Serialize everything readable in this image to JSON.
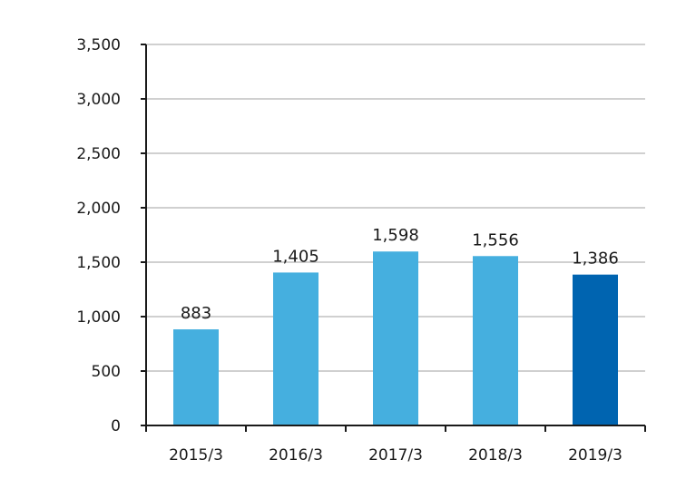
{
  "chart_data": {
    "type": "bar",
    "title": "",
    "xlabel": "",
    "ylabel": "",
    "categories": [
      "2015/3",
      "2016/3",
      "2017/3",
      "2018/3",
      "2019/3"
    ],
    "values": [
      883,
      1405,
      1598,
      1556,
      1386
    ],
    "value_labels": [
      "883",
      "1,405",
      "1,598",
      "1,556",
      "1,386"
    ],
    "ylim": [
      0,
      3500
    ],
    "yticks": [
      0,
      500,
      1000,
      1500,
      2000,
      2500,
      3000,
      3500
    ],
    "ytick_labels": [
      "0",
      "500",
      "1,000",
      "1,500",
      "2,000",
      "2,500",
      "3,000",
      "3,500"
    ],
    "grid": true,
    "legend": "none",
    "colors": {
      "bar": "#45afdf",
      "highlight_bar": "#0064b0",
      "grid": "#b5b5b5",
      "axis": "#1a1a1a"
    },
    "highlight_index": 4
  }
}
